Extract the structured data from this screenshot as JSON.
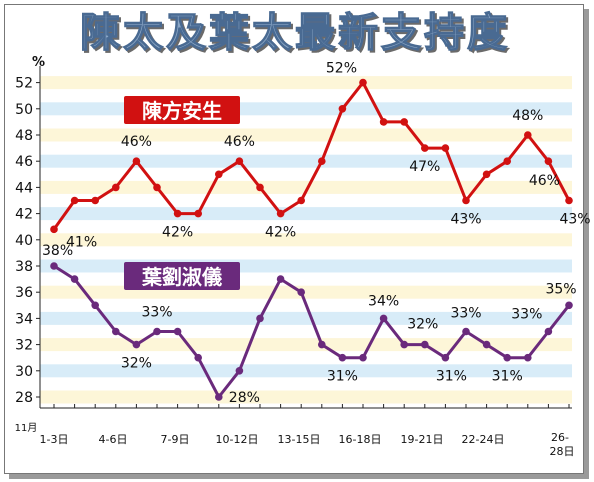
{
  "title": "陳太及葉太最新支持度",
  "chart_data": {
    "type": "line",
    "ylabel": "%",
    "month_label": "11月",
    "ylim": [
      28,
      52
    ],
    "yticks": [
      28,
      30,
      32,
      34,
      36,
      38,
      40,
      42,
      44,
      46,
      48,
      50,
      52
    ],
    "grid": "horizontal bands",
    "categories": [
      "1-3日",
      "4-6日",
      "7-9日",
      "10-12日",
      "13-15日",
      "16-18日",
      "19-21日",
      "22-24日",
      "26-28日"
    ],
    "x": [
      1,
      2,
      3,
      4,
      5,
      6,
      7,
      8,
      9,
      10,
      11,
      12,
      13,
      14,
      15,
      16,
      17,
      18,
      19,
      20,
      21,
      22,
      23,
      24,
      25,
      26
    ],
    "series": [
      {
        "name": "陳方安生",
        "color": "#d11111",
        "values": [
          40.8,
          43,
          43,
          44,
          46,
          44,
          42,
          42,
          45,
          46,
          44,
          42,
          43,
          46,
          50,
          52,
          49,
          49,
          47,
          47,
          43,
          45,
          46,
          48,
          46,
          43
        ]
      },
      {
        "name": "葉劉淑儀",
        "color": "#6a2a7c",
        "values": [
          38,
          37,
          35,
          33,
          32,
          33,
          33,
          31,
          28,
          30,
          34,
          37,
          36,
          32,
          31,
          31,
          34,
          32,
          32,
          31,
          33,
          32,
          31,
          31,
          33,
          35
        ]
      }
    ],
    "annotations": [
      {
        "text": "41%",
        "series": 0,
        "index": 0
      },
      {
        "text": "46%",
        "series": 0,
        "index": 4
      },
      {
        "text": "42%",
        "series": 0,
        "index": 6
      },
      {
        "text": "46%",
        "series": 0,
        "index": 9
      },
      {
        "text": "42%",
        "series": 0,
        "index": 11
      },
      {
        "text": "52%",
        "series": 0,
        "index": 15
      },
      {
        "text": "47%",
        "series": 0,
        "index": 18
      },
      {
        "text": "43%",
        "series": 0,
        "index": 20
      },
      {
        "text": "48%",
        "series": 0,
        "index": 23
      },
      {
        "text": "46%",
        "series": 0,
        "index": 24
      },
      {
        "text": "43%",
        "series": 0,
        "index": 25
      },
      {
        "text": "38%",
        "series": 1,
        "index": 0
      },
      {
        "text": "32%",
        "series": 1,
        "index": 4
      },
      {
        "text": "33%",
        "series": 1,
        "index": 5
      },
      {
        "text": "28%",
        "series": 1,
        "index": 8
      },
      {
        "text": "31%",
        "series": 1,
        "index": 14
      },
      {
        "text": "34%",
        "series": 1,
        "index": 16
      },
      {
        "text": "32%",
        "series": 1,
        "index": 18
      },
      {
        "text": "31%",
        "series": 1,
        "index": 19
      },
      {
        "text": "33%",
        "series": 1,
        "index": 20
      },
      {
        "text": "31%",
        "series": 1,
        "index": 22
      },
      {
        "text": "33%",
        "series": 1,
        "index": 24
      },
      {
        "text": "35%",
        "series": 1,
        "index": 25
      }
    ]
  }
}
